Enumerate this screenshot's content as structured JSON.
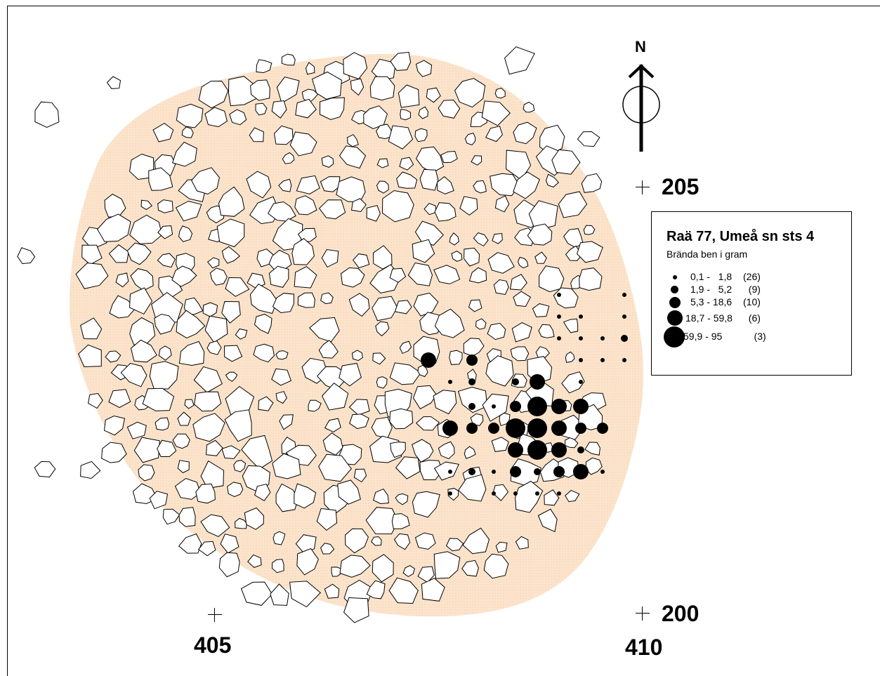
{
  "compass": {
    "label": "N"
  },
  "coordinates": [
    {
      "id": "y205",
      "label": "205"
    },
    {
      "id": "y200",
      "label": "200"
    },
    {
      "id": "x405",
      "label": "405"
    },
    {
      "id": "x410",
      "label": "410"
    }
  ],
  "legend": {
    "title": "Raä 77, Umeå sn sts 4",
    "subtitle": "Brända ben i gram",
    "items": [
      {
        "range": "0,1 -   1,8",
        "count": "(26)"
      },
      {
        "range": "1,9 -   5,2",
        "count": "  (9)"
      },
      {
        "range": "5,3 - 18,6",
        "count": "(10)"
      },
      {
        "range": "18,7 - 59,8",
        "count": "  (6)"
      },
      {
        "range": "59,9 - 95",
        "count": "    (3)"
      }
    ]
  },
  "colors": {
    "area_fill": "#fce4cc",
    "stone_fill": "#ffffff",
    "stone_stroke": "#000000",
    "bone_dot": "#000000"
  }
}
